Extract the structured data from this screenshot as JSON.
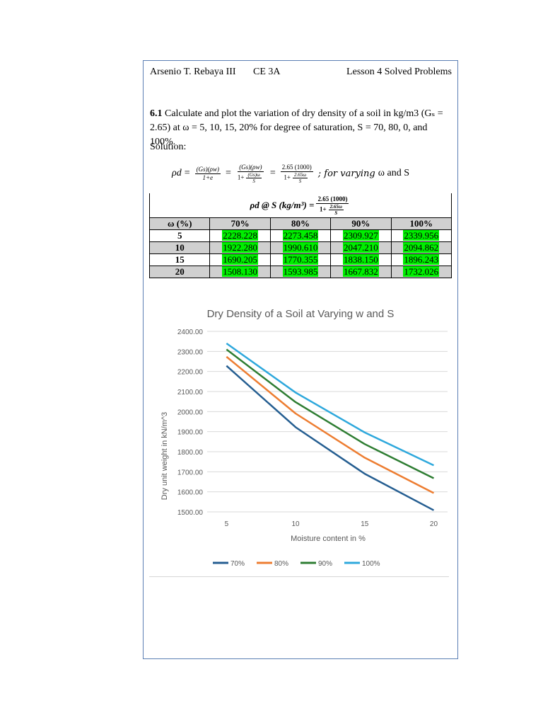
{
  "header": {
    "author": "Arsenio T. Rebaya III",
    "course": "CE 3A",
    "lesson": "Lesson 4 Solved Problems"
  },
  "problem": {
    "number": "6.1",
    "text": "Calculate and plot the variation of dry density of a soil in kg/m3 (Gₛ = 2.65) at ω = 5, 10, 15, 20% for degree of saturation, S = 70, 80, 0, and 100%."
  },
  "solution_label": "Solution:",
  "equation": {
    "lhs": "ρd",
    "f1_num": "(Gs)(ρw)",
    "f1_den": "1+e",
    "f2_num": "(Gs)(ρw)",
    "f2_den_pre": "1+",
    "f2_den_num": "(Gs)ω",
    "f2_den_den": "S",
    "f3_num": "2.65 (1000)",
    "f3_den_pre": "1+",
    "f3_den_num": "2.65ω",
    "f3_den_den": "S",
    "tail_italic": "; for varying",
    "tail": "ω and S"
  },
  "table": {
    "title_pre": "ρd @ S (kg/m³) =",
    "title_num": "2.65 (1000)",
    "title_den_pre": "1+",
    "title_den_num": "2.65ω",
    "title_den_den": "S",
    "headers": [
      "ω (%)",
      "70%",
      "80%",
      "90%",
      "100%"
    ],
    "rows": [
      {
        "w": "5",
        "values": [
          "2228.228",
          "2273.458",
          "2309.927",
          "2339.956"
        ]
      },
      {
        "w": "10",
        "values": [
          "1922.280",
          "1990.610",
          "2047.210",
          "2094.862"
        ]
      },
      {
        "w": "15",
        "values": [
          "1690.205",
          "1770.355",
          "1838.150",
          "1896.243"
        ]
      },
      {
        "w": "20",
        "values": [
          "1508.130",
          "1593.985",
          "1667.832",
          "1732.026"
        ]
      }
    ]
  },
  "chart_data": {
    "type": "line",
    "title": "Dry Density of a Soil at Varying w and S",
    "xlabel": "Moisture content in %",
    "ylabel": "Dry unit weight in kN/m^3",
    "x": [
      5,
      10,
      15,
      20
    ],
    "x_ticks": [
      "5",
      "10",
      "15",
      "20"
    ],
    "y_ticks": [
      "1500.00",
      "1600.00",
      "1700.00",
      "1800.00",
      "1900.00",
      "2000.00",
      "2100.00",
      "2200.00",
      "2300.00",
      "2400.00"
    ],
    "ylim": [
      1500,
      2400
    ],
    "grid": true,
    "legend_position": "bottom",
    "series": [
      {
        "name": "70%",
        "color": "#255e91",
        "values": [
          2228.228,
          1922.28,
          1690.205,
          1508.13
        ]
      },
      {
        "name": "80%",
        "color": "#ed7d31",
        "values": [
          2273.458,
          1990.61,
          1770.355,
          1593.985
        ]
      },
      {
        "name": "90%",
        "color": "#2e7d32",
        "values": [
          2309.927,
          2047.21,
          1838.15,
          1667.832
        ]
      },
      {
        "name": "100%",
        "color": "#2ea8dc",
        "values": [
          2339.956,
          2094.862,
          1896.243,
          1732.026
        ]
      }
    ]
  }
}
